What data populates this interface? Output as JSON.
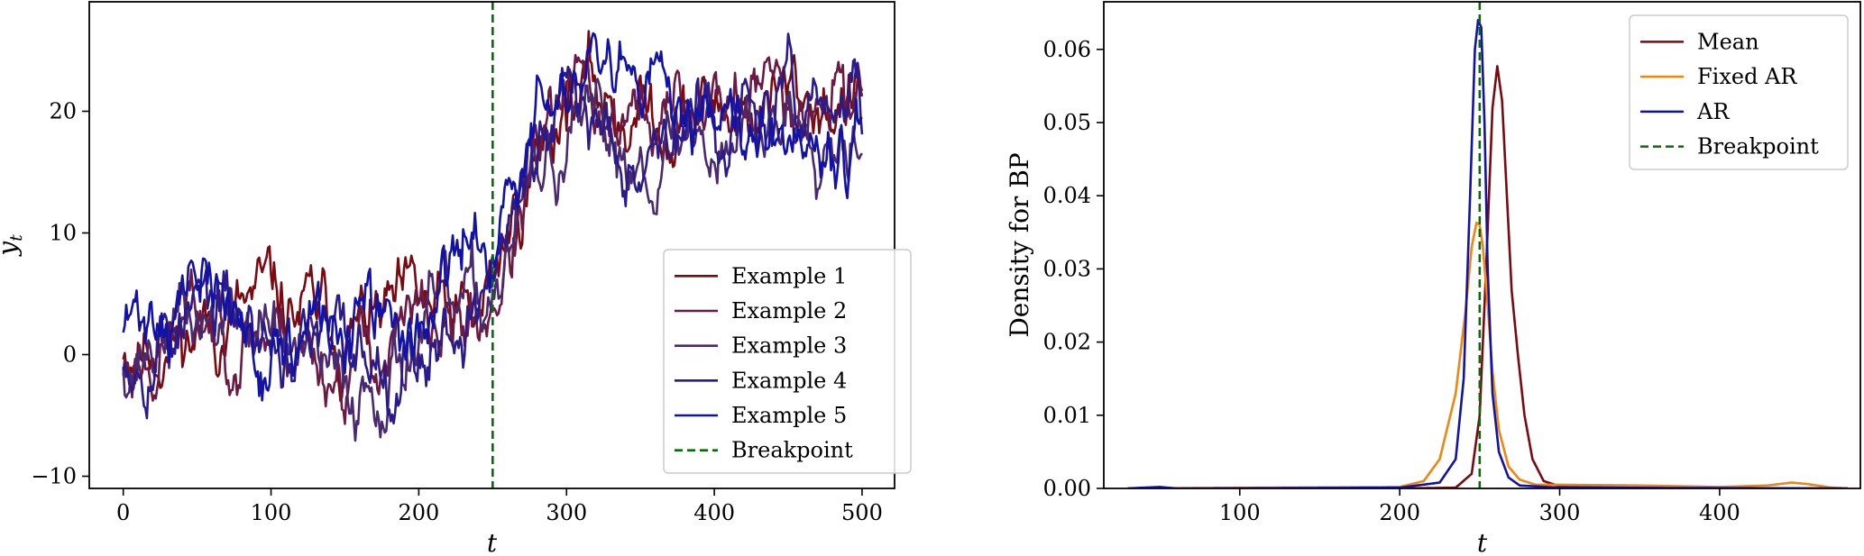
{
  "chart_data": [
    {
      "type": "line",
      "xlabel": "t",
      "ylabel": "y_t",
      "xlim": [
        -23,
        522
      ],
      "ylim": [
        -11,
        29
      ],
      "xticks": [
        0,
        100,
        200,
        300,
        400,
        500
      ],
      "yticks": [
        -10,
        0,
        10,
        20
      ],
      "xtick_labels": [
        "0",
        "100",
        "200",
        "300",
        "400",
        "500"
      ],
      "ytick_labels": [
        "−10",
        "0",
        "10",
        "20"
      ],
      "legend_position": "lower-right",
      "breakpoint": {
        "name": "Breakpoint",
        "x": 250,
        "color": "#0a6b0a",
        "style": "dashed"
      },
      "series": [
        {
          "name": "Example 1",
          "color": "#7a0a12",
          "seed": 11,
          "values_approx": {
            "x": [
              0,
              50,
              100,
              150,
              200,
              240,
              260,
              280,
              300,
              350,
              400,
              450,
              500
            ],
            "y": [
              1,
              2,
              4,
              2,
              3,
              2,
              10,
              16,
              22,
              20,
              20,
              21,
              21
            ]
          }
        },
        {
          "name": "Example 2",
          "color": "#6b1a44",
          "seed": 23,
          "values_approx": {
            "x": [
              0,
              50,
              100,
              150,
              200,
              240,
              260,
              280,
              300,
              350,
              400,
              450,
              500
            ],
            "y": [
              -1,
              3,
              2,
              -1,
              2,
              2,
              8,
              15,
              21,
              19,
              21,
              22,
              22
            ]
          }
        },
        {
          "name": "Example 3",
          "color": "#4a2a6e",
          "seed": 37,
          "values_approx": {
            "x": [
              0,
              50,
              100,
              150,
              200,
              240,
              260,
              280,
              300,
              350,
              400,
              450,
              500
            ],
            "y": [
              0,
              3,
              2,
              -4,
              2,
              3,
              9,
              14,
              17,
              17,
              18,
              20,
              20
            ]
          }
        },
        {
          "name": "Example 4",
          "color": "#2a1a8a",
          "seed": 53,
          "values_approx": {
            "x": [
              0,
              50,
              100,
              150,
              200,
              240,
              260,
              280,
              300,
              350,
              400,
              450,
              500
            ],
            "y": [
              1,
              4,
              1,
              0,
              1,
              4,
              10,
              16,
              20,
              18,
              19,
              20,
              20
            ]
          }
        },
        {
          "name": "Example 5",
          "color": "#1212a6",
          "seed": 71,
          "values_approx": {
            "x": [
              0,
              50,
              100,
              150,
              200,
              240,
              260,
              280,
              300,
              350,
              400,
              450,
              500
            ],
            "y": [
              2,
              6,
              0,
              2,
              2,
              9,
              13,
              19,
              22,
              20,
              22,
              20,
              19
            ]
          }
        }
      ]
    },
    {
      "type": "line",
      "xlabel": "t",
      "ylabel": "Density for BP",
      "xlim": [
        15,
        488
      ],
      "ylim": [
        0,
        0.0665
      ],
      "xticks": [
        100,
        200,
        300,
        400
      ],
      "yticks": [
        0.0,
        0.01,
        0.02,
        0.03,
        0.04,
        0.05,
        0.06
      ],
      "xtick_labels": [
        "100",
        "200",
        "300",
        "400"
      ],
      "ytick_labels": [
        "0.00",
        "0.01",
        "0.02",
        "0.03",
        "0.04",
        "0.05",
        "0.06"
      ],
      "legend_position": "top-right",
      "breakpoint": {
        "name": "Breakpoint",
        "x": 250,
        "color": "#0a6b0a",
        "style": "dashed"
      },
      "series": [
        {
          "name": "Mean",
          "color": "#7a0a12",
          "x": [
            30,
            200,
            235,
            245,
            250,
            254,
            258,
            261,
            264,
            267,
            270,
            274,
            278,
            283,
            290,
            300,
            350,
            450,
            480
          ],
          "y": [
            0,
            0,
            0.0001,
            0.002,
            0.01,
            0.03,
            0.052,
            0.0577,
            0.053,
            0.04,
            0.027,
            0.018,
            0.01,
            0.004,
            0.001,
            0.0003,
            0.0001,
            0,
            0
          ]
        },
        {
          "name": "Fixed AR",
          "color": "#ee8610",
          "x": [
            30,
            200,
            215,
            225,
            235,
            241,
            245,
            248,
            250,
            252,
            255,
            258,
            262,
            268,
            275,
            285,
            300,
            350,
            400,
            430,
            445,
            455,
            470,
            480
          ],
          "y": [
            0,
            0.0002,
            0.001,
            0.004,
            0.013,
            0.024,
            0.033,
            0.0363,
            0.036,
            0.033,
            0.025,
            0.016,
            0.008,
            0.003,
            0.0012,
            0.0005,
            0.0005,
            0.0004,
            0.0002,
            0.0004,
            0.0008,
            0.0006,
            0.0001,
            0
          ]
        },
        {
          "name": "AR",
          "color": "#1212a6",
          "x": [
            30,
            50,
            60,
            200,
            225,
            235,
            240,
            244,
            247,
            249,
            251,
            253,
            255,
            258,
            262,
            268,
            275,
            300,
            480
          ],
          "y": [
            0,
            0.0002,
            0,
            0.0001,
            0.0008,
            0.004,
            0.015,
            0.04,
            0.06,
            0.064,
            0.063,
            0.05,
            0.03,
            0.013,
            0.005,
            0.0015,
            0.0004,
            0.0001,
            0
          ]
        }
      ]
    }
  ]
}
